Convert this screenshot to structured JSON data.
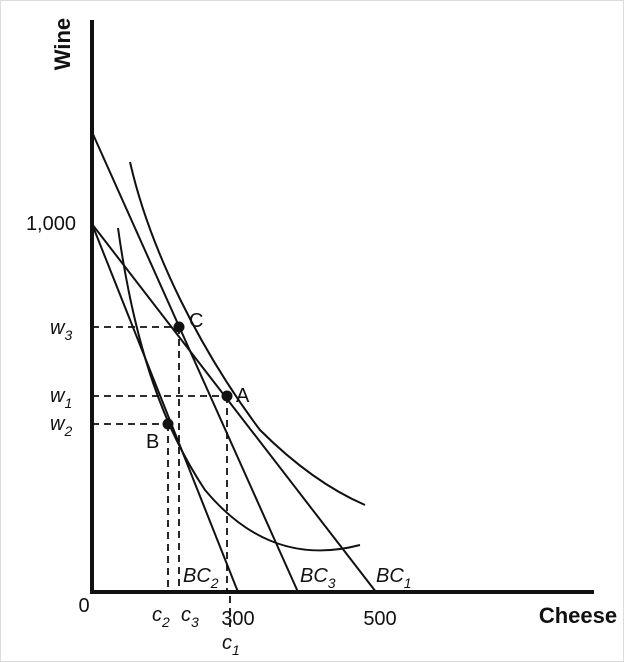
{
  "axes": {
    "x_title": "Cheese",
    "y_title": "Wine",
    "origin": "0",
    "y_tick_1000": "1,000",
    "x_tick_300": "300",
    "x_tick_500": "500"
  },
  "points": {
    "A": "A",
    "B": "B",
    "C": "C"
  },
  "budget_lines": {
    "bc1": {
      "base": "BC",
      "sub": "1"
    },
    "bc2": {
      "base": "BC",
      "sub": "2"
    },
    "bc3": {
      "base": "BC",
      "sub": "3"
    }
  },
  "y_guides": {
    "w1": {
      "base": "w",
      "sub": "1"
    },
    "w2": {
      "base": "w",
      "sub": "2"
    },
    "w3": {
      "base": "w",
      "sub": "3"
    }
  },
  "x_guides": {
    "c1": {
      "base": "c",
      "sub": "1"
    },
    "c2": {
      "base": "c",
      "sub": "2"
    },
    "c3": {
      "base": "c",
      "sub": "3"
    }
  }
}
